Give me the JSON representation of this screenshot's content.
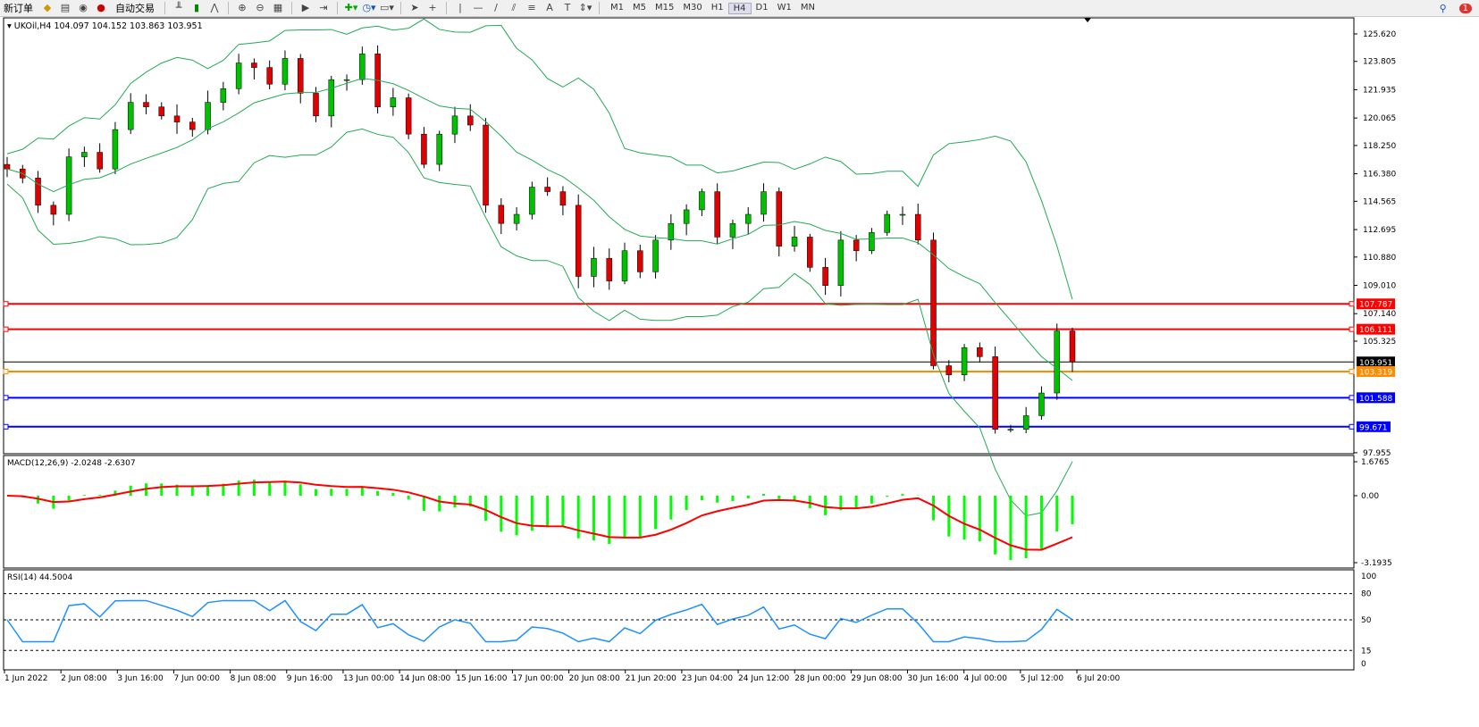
{
  "toolbar": {
    "new_order": "新订单",
    "auto_trading": "自动交易",
    "icons": [
      "gold-bars-icon",
      "market-watch-icon",
      "signal-icon",
      "auto-trading-icon",
      "bar-chart-icon",
      "candlestick-icon",
      "line-chart-icon",
      "zoom-in-icon",
      "zoom-out-icon",
      "tile-windows-icon",
      "autoscroll-icon",
      "chart-shift-icon",
      "indicators-icon",
      "periods-icon",
      "templates-icon",
      "cursor-icon",
      "crosshair-icon",
      "vertical-line-icon",
      "horizontal-line-icon",
      "trendline-icon",
      "equidistant-channel-icon",
      "fibonacci-icon",
      "text-icon",
      "text-label-icon",
      "arrows-icon"
    ],
    "draw_labels": {
      "text": "A",
      "label": "T"
    },
    "timeframes": [
      "M1",
      "M5",
      "M15",
      "M30",
      "H1",
      "H4",
      "D1",
      "W1",
      "MN"
    ],
    "active_timeframe": "H4",
    "notifications": "1"
  },
  "chart": {
    "symbol_info": "UKOil,H4  104.097 104.152 103.863 103.951",
    "price_ticks": [
      "125.620",
      "123.805",
      "121.935",
      "120.065",
      "118.250",
      "116.380",
      "114.565",
      "112.695",
      "110.880",
      "109.010",
      "107.140",
      "105.325",
      "97.955"
    ],
    "levels": [
      {
        "price": 107.787,
        "label": "107.787",
        "color": "#ff0000"
      },
      {
        "price": 106.111,
        "label": "106.111",
        "color": "#ff0000"
      },
      {
        "price": 103.951,
        "label": "103.951",
        "color": "#000000"
      },
      {
        "price": 103.319,
        "label": "103.319",
        "color": "#ff8c00"
      },
      {
        "price": 101.588,
        "label": "101.588",
        "color": "#0000ff"
      },
      {
        "price": 99.671,
        "label": "99.671",
        "color": "#0000ff"
      }
    ],
    "time_labels": [
      "1 Jun 2022",
      "2 Jun 08:00",
      "3 Jun 16:00",
      "7 Jun 00:00",
      "8 Jun 08:00",
      "9 Jun 16:00",
      "13 Jun 00:00",
      "14 Jun 08:00",
      "15 Jun 16:00",
      "17 Jun 00:00",
      "20 Jun 08:00",
      "21 Jun 20:00",
      "23 Jun 04:00",
      "24 Jun 12:00",
      "28 Jun 00:00",
      "29 Jun 08:00",
      "30 Jun 16:00",
      "4 Jul 00:00",
      "5 Jul 12:00",
      "6 Jul 20:00"
    ],
    "colors": {
      "bull": "#00c000",
      "bear": "#e00000",
      "bands": "#22aa55",
      "macd_hist": "#00ff00",
      "macd_signal": "#ff0000",
      "rsi": "#1e90ff"
    }
  },
  "macd": {
    "label": "MACD(12,26,9) -2.0248 -2.6307",
    "ticks": [
      "1.6765",
      "0.00",
      "-3.1935"
    ]
  },
  "rsi": {
    "label": "RSI(14) 44.5004",
    "ticks": [
      "100",
      "80",
      "50",
      "15",
      "0"
    ]
  },
  "chart_data": {
    "type": "candlestick",
    "ylim": [
      97.89,
      126.68
    ],
    "close": [
      116.7,
      116.1,
      114.3,
      113.7,
      117.5,
      117.8,
      116.7,
      119.3,
      121.1,
      120.8,
      120.2,
      119.8,
      119.3,
      121.1,
      122.0,
      123.7,
      123.4,
      122.3,
      124.0,
      121.7,
      120.2,
      122.6,
      122.6,
      124.3,
      120.8,
      121.4,
      119.0,
      117.0,
      119.0,
      120.2,
      119.6,
      114.3,
      113.1,
      113.7,
      115.5,
      115.2,
      114.3,
      109.6,
      110.8,
      109.3,
      111.3,
      109.9,
      112.0,
      113.1,
      114.0,
      115.2,
      112.2,
      113.1,
      113.7,
      115.2,
      111.6,
      112.2,
      110.2,
      109.0,
      112.0,
      111.3,
      112.5,
      113.7,
      113.7,
      112.0,
      103.7,
      103.1,
      104.9,
      104.3,
      99.5,
      99.5,
      100.4,
      101.9,
      106.0,
      103.951
    ]
  }
}
